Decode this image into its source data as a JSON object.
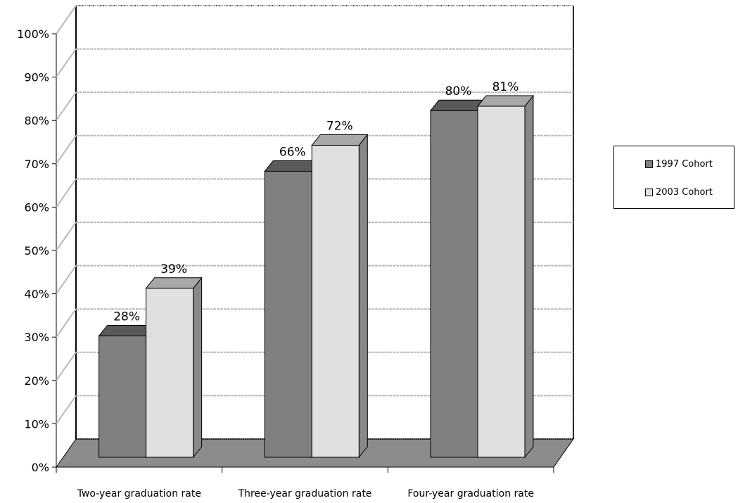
{
  "chart_data": {
    "type": "bar",
    "categories": [
      "Two-year graduation rate",
      "Three-year graduation rate",
      "Four-year graduation rate"
    ],
    "series": [
      {
        "name": "1997 Cohort",
        "values": [
          28,
          66,
          80
        ],
        "labels": [
          "28%",
          "66%",
          "80%"
        ],
        "color": "#808080"
      },
      {
        "name": "2003 Cohort",
        "values": [
          39,
          72,
          81
        ],
        "labels": [
          "39%",
          "72%",
          "81%"
        ],
        "color": "#e0e0e0"
      }
    ],
    "ylim": [
      0,
      100
    ],
    "yticks": [
      "0%",
      "10%",
      "20%",
      "30%",
      "40%",
      "50%",
      "60%",
      "70%",
      "80%",
      "90%",
      "100%"
    ],
    "grid": true,
    "legend_position": "right",
    "style": "3d-clustered-column"
  }
}
